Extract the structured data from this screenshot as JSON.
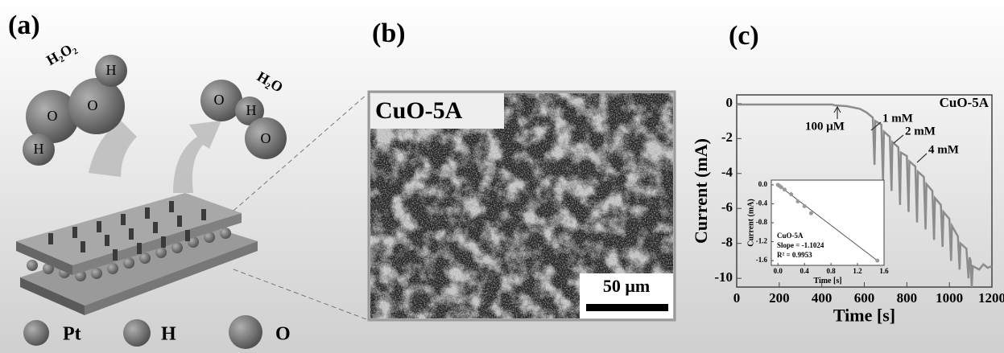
{
  "panel_a": {
    "label": "(a)",
    "reactant": "H₂O₂",
    "product": "H₂O",
    "atoms": [
      "O",
      "O",
      "H",
      "H",
      "O",
      "H",
      "O"
    ],
    "legend": [
      "Pt",
      "H",
      "O"
    ]
  },
  "panel_b": {
    "label": "(b)",
    "sample": "CuO-5A",
    "scale_bar": "50 μm"
  },
  "panel_c": {
    "label": "(c)"
  },
  "chart_data": [
    {
      "type": "line",
      "xlabel": "Time [s]",
      "ylabel": "Current (mA)",
      "color": "#8c8c8c",
      "x": [
        0,
        450,
        460,
        520,
        580,
        610,
        640,
        648,
        652,
        680,
        688,
        692,
        720,
        728,
        732,
        760,
        768,
        772,
        800,
        808,
        812,
        840,
        848,
        852,
        880,
        888,
        892,
        920,
        928,
        932,
        960,
        968,
        972,
        1000,
        1008,
        1012,
        1040,
        1048,
        1052,
        1080,
        1090,
        1095,
        1100,
        1105,
        1110,
        1140,
        1160,
        1180,
        1200
      ],
      "values": [
        -0.05,
        -0.05,
        -0.1,
        -0.15,
        -0.3,
        -0.5,
        -0.8,
        -3.5,
        -1.0,
        -1.2,
        -4.5,
        -1.6,
        -1.9,
        -5.0,
        -2.2,
        -2.5,
        -5.8,
        -2.8,
        -3.0,
        -6.2,
        -3.3,
        -3.6,
        -6.8,
        -3.9,
        -4.2,
        -7.2,
        -4.6,
        -5.0,
        -7.8,
        -5.4,
        -5.8,
        -8.2,
        -6.2,
        -6.6,
        -9.0,
        -7.0,
        -7.6,
        -9.5,
        -8.0,
        -8.3,
        -10.0,
        -8.8,
        -9.0,
        -10.5,
        -9.3,
        -9.5,
        -9.2,
        -9.4,
        -9.3
      ],
      "xlim": [
        0,
        1200
      ],
      "ylim": [
        -10.5,
        0.5
      ],
      "xticks": [
        0,
        200,
        400,
        600,
        800,
        1000,
        1200
      ],
      "yticks": [
        0,
        -2,
        -4,
        -6,
        -8,
        -10
      ],
      "annotations": [
        "CuO-5A",
        "100 μM",
        "1 mM",
        "2 mM",
        "4 mM"
      ]
    },
    {
      "type": "scatter",
      "xlabel": "Time [s]",
      "ylabel": "Current (mA)",
      "color": "#9a9a9a",
      "x": [
        0,
        0.02,
        0.05,
        0.1,
        0.2,
        0.3,
        0.4,
        0.5,
        1.5
      ],
      "values": [
        0,
        -0.02,
        -0.05,
        -0.1,
        -0.2,
        -0.35,
        -0.45,
        -0.6,
        -1.6
      ],
      "xlim": [
        -0.1,
        1.6
      ],
      "ylim": [
        -1.7,
        0.1
      ],
      "xticks": [
        {
          "value": 0,
          "label": "0.0"
        },
        0.4,
        0.8,
        1.2,
        1.6
      ],
      "yticks": [
        {
          "value": 0,
          "label": "0.0"
        },
        -0.4,
        -0.8,
        -1.2,
        -1.6
      ],
      "annotations": [
        "CuO-5A",
        "Slope = -1.1024",
        "R² = 0.9953"
      ]
    }
  ]
}
